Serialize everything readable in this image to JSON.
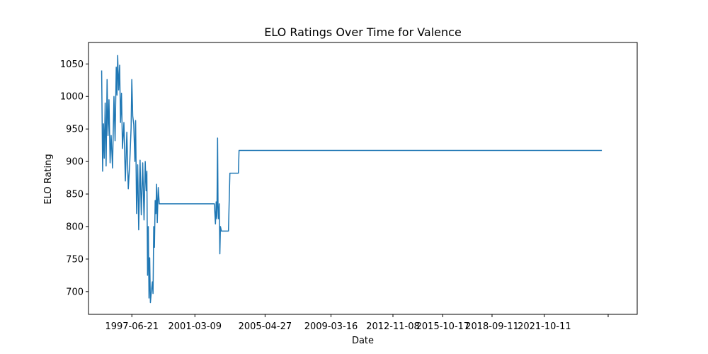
{
  "chart_data": {
    "type": "line",
    "title": "ELO Ratings Over Time for Valence",
    "xlabel": "Date",
    "ylabel": "ELO Rating",
    "x_range": [
      "1994-12-01",
      "2027-04-01"
    ],
    "ylim": [
      665,
      1083
    ],
    "x_ticks": [
      {
        "date": "1997-06-21",
        "label": "1997-06-21"
      },
      {
        "date": "2001-03-09",
        "label": "2001-03-09"
      },
      {
        "date": "2005-04-27",
        "label": "2005-04-27"
      },
      {
        "date": "2009-03-16",
        "label": "2009-03-16"
      },
      {
        "date": "2012-11-08",
        "label": "2012-11-08"
      },
      {
        "date": "2015-10-17",
        "label": "2015-10-17"
      },
      {
        "date": "2018-09-11",
        "label": "2018-09-11"
      },
      {
        "date": "2021-10-11",
        "label": "2021-10-11"
      },
      {
        "date": "2025-07-15",
        "label": ""
      }
    ],
    "y_ticks": [
      700,
      750,
      800,
      850,
      900,
      950,
      1000,
      1050
    ],
    "grid": false,
    "series": [
      {
        "color": "#1f77b4",
        "points": [
          [
            "1995-09-10",
            1040
          ],
          [
            "1995-10-01",
            885
          ],
          [
            "1995-10-20",
            958
          ],
          [
            "1995-11-05",
            905
          ],
          [
            "1995-11-25",
            990
          ],
          [
            "1995-12-15",
            893
          ],
          [
            "1996-01-05",
            1026
          ],
          [
            "1996-01-25",
            940
          ],
          [
            "1996-02-15",
            995
          ],
          [
            "1996-03-10",
            898
          ],
          [
            "1996-04-01",
            940
          ],
          [
            "1996-05-01",
            890
          ],
          [
            "1996-06-01",
            1000
          ],
          [
            "1996-06-25",
            932
          ],
          [
            "1996-07-20",
            1045
          ],
          [
            "1996-08-05",
            1002
          ],
          [
            "1996-08-20",
            1063
          ],
          [
            "1996-09-10",
            1010
          ],
          [
            "1996-10-01",
            1048
          ],
          [
            "1996-10-20",
            960
          ],
          [
            "1996-11-10",
            1005
          ],
          [
            "1996-12-01",
            920
          ],
          [
            "1997-01-01",
            960
          ],
          [
            "1997-02-01",
            870
          ],
          [
            "1997-03-05",
            945
          ],
          [
            "1997-04-05",
            858
          ],
          [
            "1997-05-05",
            895
          ],
          [
            "1997-06-05",
            952
          ],
          [
            "1997-06-20",
            1026
          ],
          [
            "1997-07-10",
            970
          ],
          [
            "1997-08-01",
            957
          ],
          [
            "1997-08-25",
            900
          ],
          [
            "1997-09-10",
            963
          ],
          [
            "1997-10-01",
            820
          ],
          [
            "1997-10-25",
            895
          ],
          [
            "1997-11-15",
            795
          ],
          [
            "1997-12-15",
            902
          ],
          [
            "1998-01-10",
            818
          ],
          [
            "1998-02-10",
            898
          ],
          [
            "1998-03-10",
            810
          ],
          [
            "1998-04-05",
            900
          ],
          [
            "1998-04-25",
            855
          ],
          [
            "1998-05-10",
            885
          ],
          [
            "1998-05-25",
            725
          ],
          [
            "1998-06-10",
            800
          ],
          [
            "1998-06-25",
            690
          ],
          [
            "1998-07-10",
            752
          ],
          [
            "1998-07-25",
            683
          ],
          [
            "1998-08-15",
            700
          ],
          [
            "1998-09-05",
            715
          ],
          [
            "1998-09-20",
            697
          ],
          [
            "1998-10-05",
            800
          ],
          [
            "1998-10-20",
            768
          ],
          [
            "1998-11-05",
            840
          ],
          [
            "1998-11-20",
            820
          ],
          [
            "1998-12-05",
            865
          ],
          [
            "1998-12-20",
            806
          ],
          [
            "1999-01-10",
            860
          ],
          [
            "1999-02-01",
            835
          ],
          [
            "2002-05-01",
            835
          ],
          [
            "2002-05-25",
            804
          ],
          [
            "2002-06-10",
            838
          ],
          [
            "2002-06-25",
            812
          ],
          [
            "2002-07-10",
            936
          ],
          [
            "2002-07-20",
            830
          ],
          [
            "2002-08-01",
            812
          ],
          [
            "2002-08-15",
            835
          ],
          [
            "2002-08-28",
            758
          ],
          [
            "2002-09-10",
            800
          ],
          [
            "2002-10-01",
            793
          ],
          [
            "2003-03-01",
            793
          ],
          [
            "2003-03-20",
            848
          ],
          [
            "2003-04-01",
            882
          ],
          [
            "2003-10-01",
            882
          ],
          [
            "2003-10-15",
            917
          ],
          [
            "2025-03-01",
            917
          ]
        ]
      }
    ]
  }
}
